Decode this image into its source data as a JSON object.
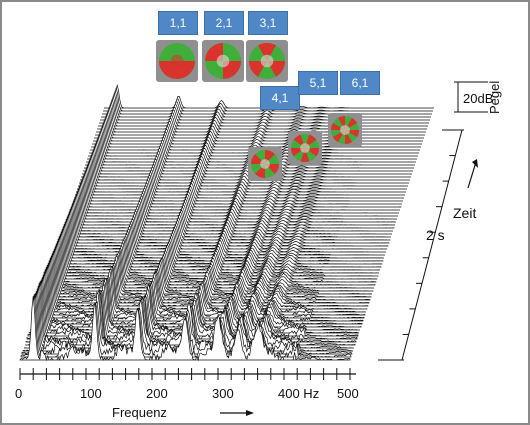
{
  "chart_data": {
    "type": "waterfall",
    "title": "",
    "xlabel": "Frequenz",
    "ylabel": "Zeit",
    "zlabel": "Pegel",
    "x_unit": "Hz",
    "x_ticks": [
      "0",
      "100",
      "200",
      "300",
      "400 Hz",
      "500"
    ],
    "xlim": [
      0,
      500
    ],
    "time_span_label": "2 s",
    "level_scale_label": "20dB",
    "n_traces": 85,
    "peaks_hz": [
      20,
      113,
      178,
      250,
      300,
      330,
      360
    ],
    "modes": [
      {
        "label": "1,1",
        "color": "#4f87c7"
      },
      {
        "label": "2,1",
        "color": "#4f87c7"
      },
      {
        "label": "3,1",
        "color": "#4f87c7"
      },
      {
        "label": "4,1",
        "color": "#4f87c7"
      },
      {
        "label": "5,1",
        "color": "#4f87c7"
      },
      {
        "label": "6,1",
        "color": "#4f87c7"
      }
    ]
  },
  "colors": {
    "label_bg": "#4f87c7",
    "mode_red": "#d8332c",
    "mode_green": "#3fae3a"
  }
}
